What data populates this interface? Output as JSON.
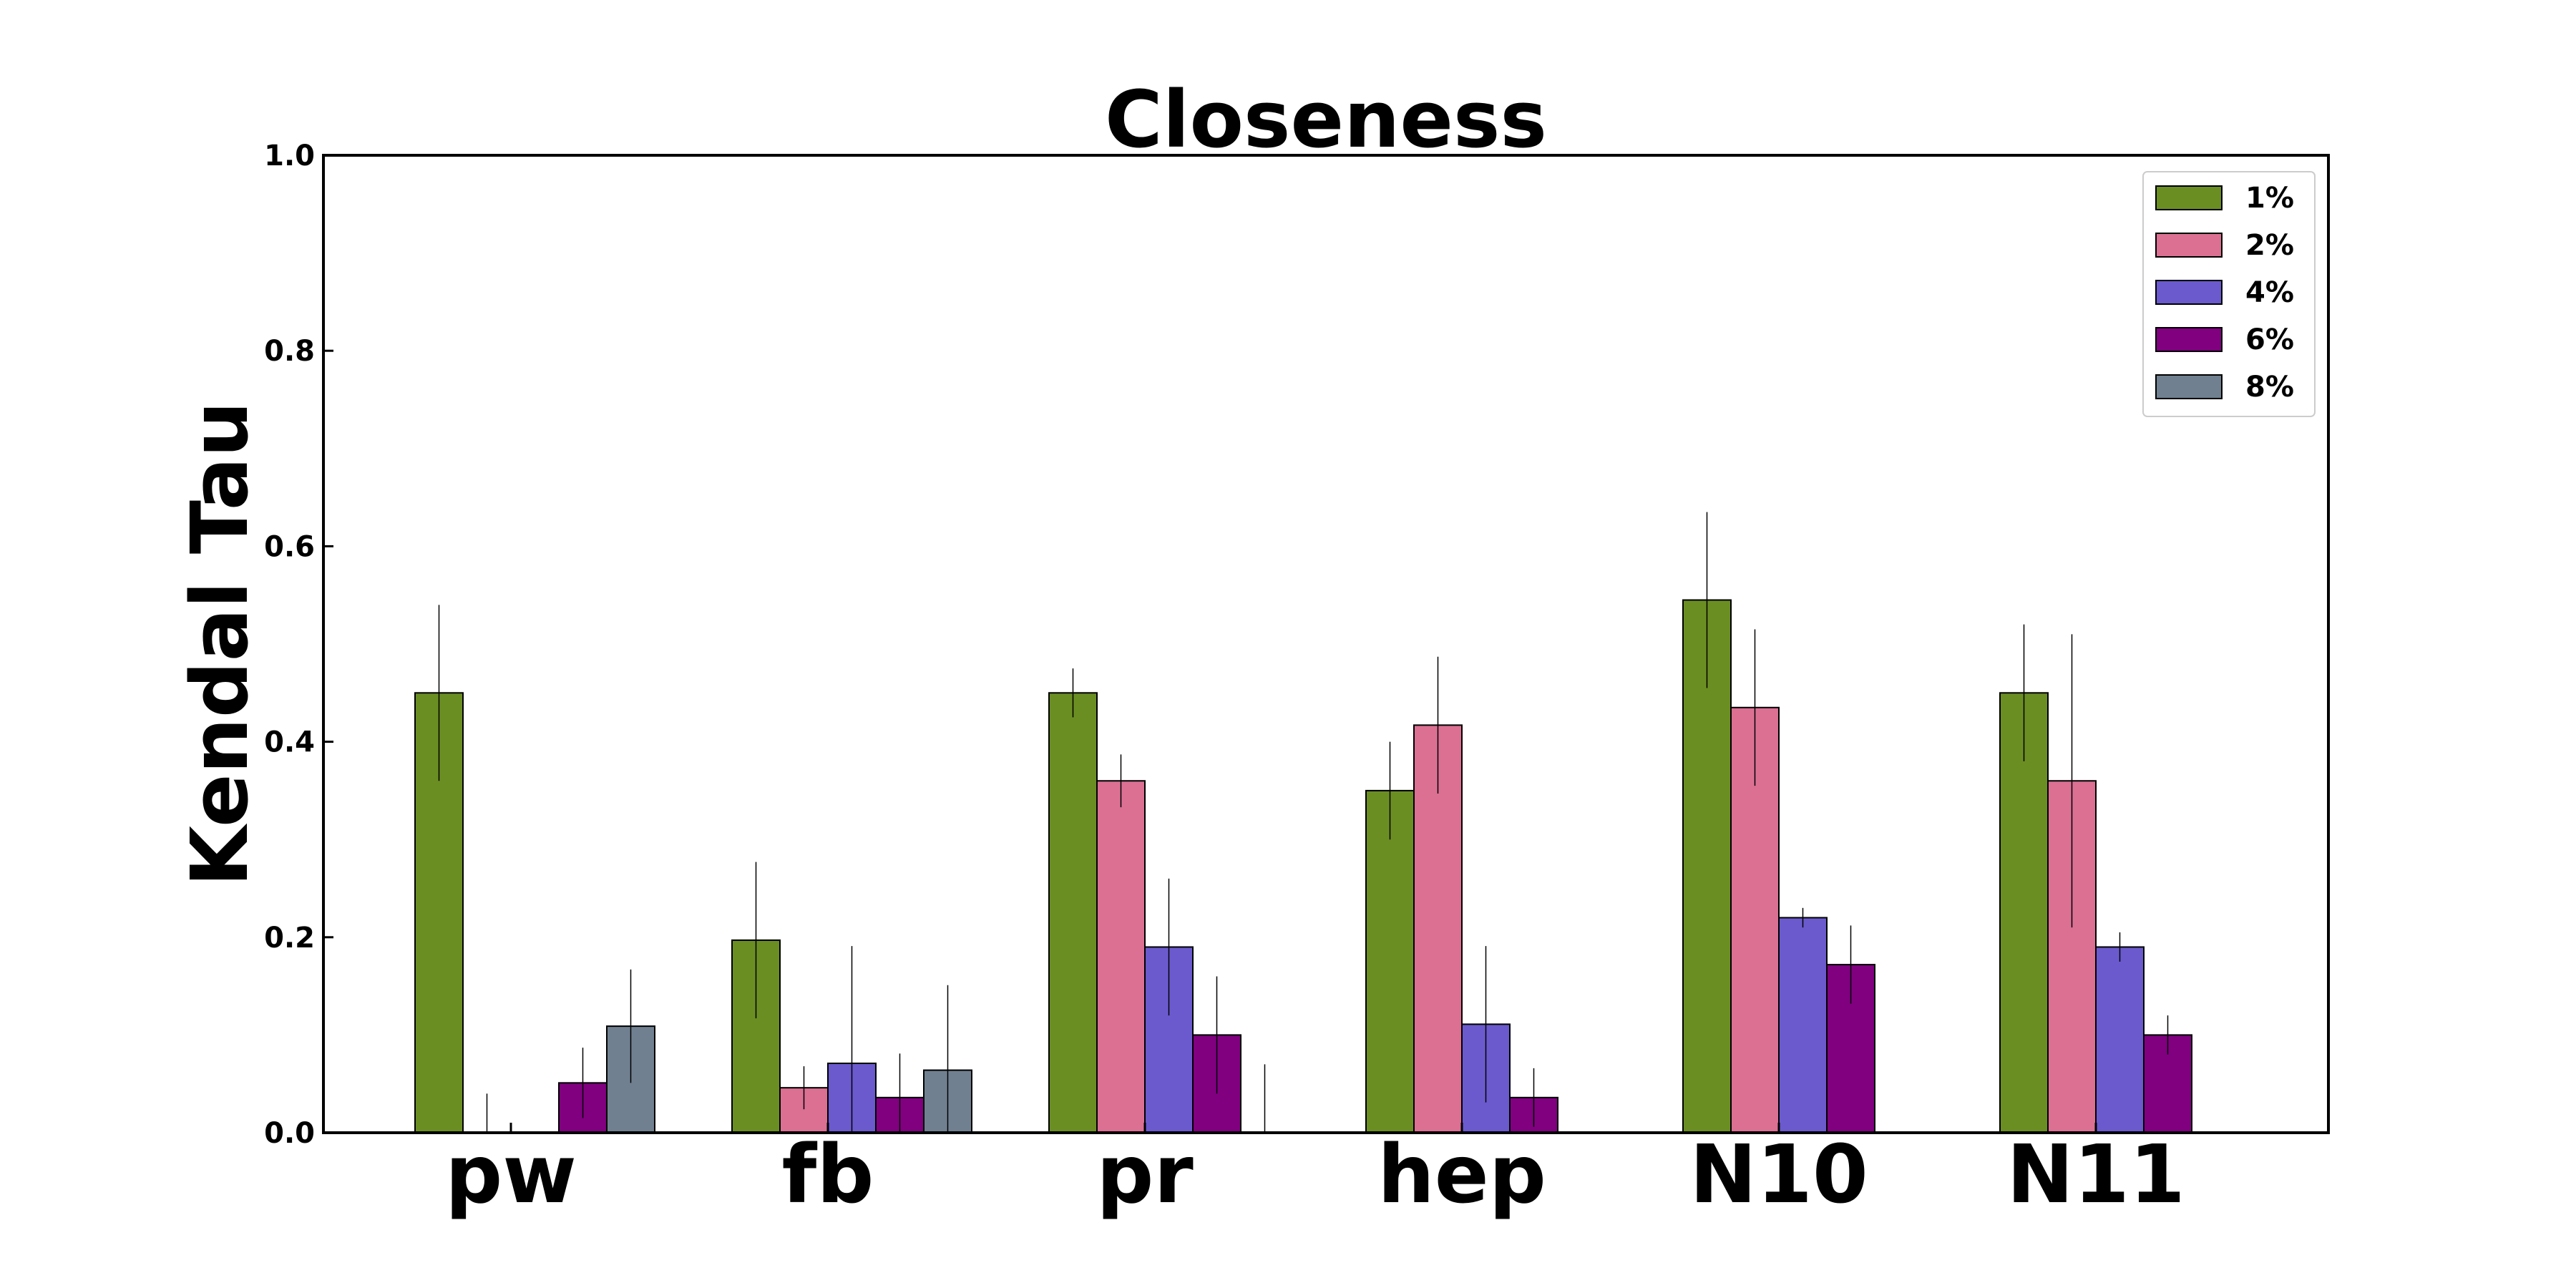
{
  "chart_data": {
    "type": "bar",
    "title": "Closeness",
    "xlabel": "",
    "ylabel": "Kendal Tau",
    "categories": [
      "pw",
      "fb",
      "pr",
      "hep",
      "N10",
      "N11"
    ],
    "ylim": [
      0,
      1.0
    ],
    "yticks": [
      "0.0",
      "0.2",
      "0.4",
      "0.6",
      "0.8",
      "1.0"
    ],
    "grid": false,
    "legend_position": "top-right",
    "series": [
      {
        "name": "1%",
        "color": "#6b8e23",
        "values": [
          0.45,
          0.197,
          0.45,
          0.35,
          0.545,
          0.45
        ],
        "errors": [
          0.09,
          0.08,
          0.025,
          0.05,
          0.09,
          0.07
        ]
      },
      {
        "name": "2%",
        "color": "#db7093",
        "values": [
          0,
          0.046,
          0.36,
          0.417,
          0.435,
          0.36
        ],
        "errors": [
          0.04,
          0.022,
          0.027,
          0.07,
          0.08,
          0.15
        ]
      },
      {
        "name": "4%",
        "color": "#6a5acd",
        "values": [
          0,
          0.071,
          0.19,
          0.111,
          0.22,
          0.19
        ],
        "errors": [
          0,
          0.12,
          0.07,
          0.08,
          0.01,
          0.015
        ]
      },
      {
        "name": "6%",
        "color": "#800080",
        "values": [
          0.051,
          0.036,
          0.1,
          0.036,
          0.172,
          0.1
        ],
        "errors": [
          0.036,
          0.045,
          0.06,
          0.03,
          0.04,
          0.02
        ]
      },
      {
        "name": "8%",
        "color": "#708090",
        "values": [
          0.109,
          0.064,
          0,
          0,
          0,
          0
        ],
        "errors": [
          0.058,
          0.087,
          0.07,
          0,
          0,
          0
        ]
      }
    ]
  }
}
